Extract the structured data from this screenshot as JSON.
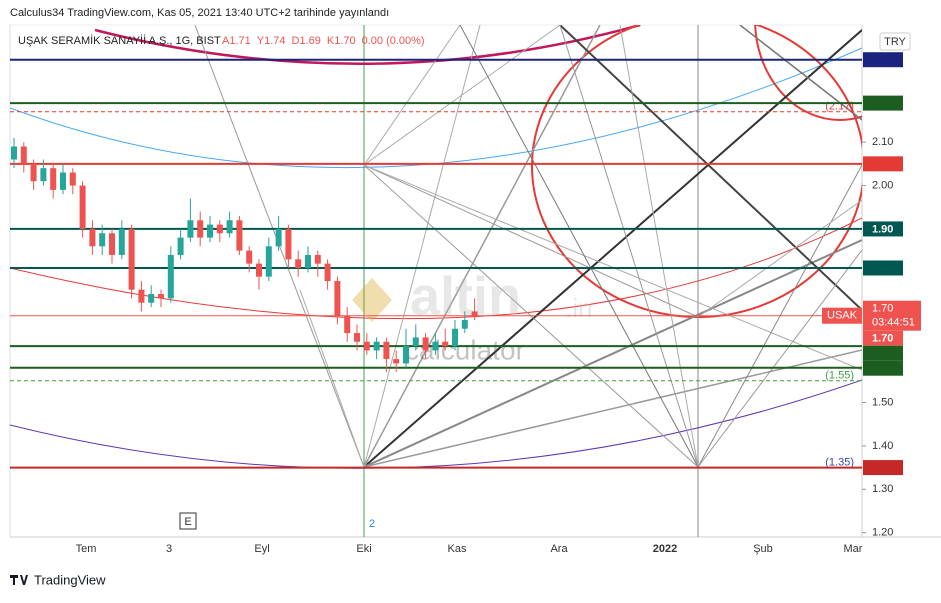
{
  "chart_data": {
    "type": "candlestick",
    "published": "Calculus34 TradingView.com, Kas 05, 2021 13:40 UTC+2 tarihinde yayınlandı",
    "symbol": "UŞAK SERAMİK SANAYİİ A.Ş., 1G, BIST",
    "ohlc_legend": [
      "A1.71",
      "Y1.74",
      "D1.69",
      "K1.70",
      "0.00 (0.00%)"
    ],
    "currency": "TRY",
    "footer": "TradingView",
    "watermark": [
      "altin",
      ".in",
      "calculator"
    ],
    "event_marker": "E",
    "bar_marker": "2",
    "up_color": "#26a69a",
    "down_color": "#ef5350",
    "open": [
      2.06,
      2.09,
      2.05,
      2.01,
      2.04,
      1.99,
      2.03,
      2.0,
      1.9,
      1.86,
      1.89,
      1.84,
      1.9,
      1.76,
      1.73,
      1.75,
      1.74,
      1.84,
      1.88,
      1.92,
      1.88,
      1.91,
      1.89,
      1.92,
      1.85,
      1.82,
      1.79,
      1.86,
      1.9,
      1.83,
      1.81,
      1.84,
      1.82,
      1.78,
      1.7,
      1.66,
      1.64,
      1.62,
      1.64,
      1.6,
      1.59,
      1.63,
      1.65,
      1.62,
      1.64,
      1.63,
      1.67,
      1.71
    ],
    "high": [
      2.11,
      2.1,
      2.06,
      2.06,
      2.05,
      2.05,
      2.04,
      2.01,
      1.92,
      1.91,
      1.9,
      1.92,
      1.91,
      1.78,
      1.77,
      1.76,
      1.86,
      1.9,
      1.97,
      1.94,
      1.93,
      1.92,
      1.94,
      1.93,
      1.86,
      1.83,
      1.88,
      1.93,
      1.91,
      1.85,
      1.86,
      1.85,
      1.83,
      1.79,
      1.72,
      1.68,
      1.66,
      1.65,
      1.65,
      1.62,
      1.67,
      1.68,
      1.66,
      1.66,
      1.67,
      1.69,
      1.71,
      1.74
    ],
    "low": [
      2.04,
      2.03,
      1.99,
      2.0,
      1.97,
      1.98,
      1.98,
      1.88,
      1.84,
      1.84,
      1.82,
      1.83,
      1.74,
      1.71,
      1.72,
      1.72,
      1.73,
      1.83,
      1.87,
      1.86,
      1.87,
      1.87,
      1.88,
      1.84,
      1.8,
      1.76,
      1.78,
      1.85,
      1.81,
      1.79,
      1.8,
      1.79,
      1.76,
      1.68,
      1.64,
      1.62,
      1.61,
      1.6,
      1.57,
      1.57,
      1.58,
      1.62,
      1.6,
      1.61,
      1.62,
      1.62,
      1.66,
      1.69
    ],
    "close": [
      2.09,
      2.05,
      2.01,
      2.04,
      1.99,
      2.03,
      2.0,
      1.9,
      1.86,
      1.89,
      1.84,
      1.9,
      1.76,
      1.73,
      1.75,
      1.74,
      1.84,
      1.88,
      1.92,
      1.88,
      1.91,
      1.89,
      1.92,
      1.85,
      1.82,
      1.79,
      1.86,
      1.9,
      1.83,
      1.81,
      1.84,
      1.82,
      1.78,
      1.7,
      1.66,
      1.64,
      1.62,
      1.64,
      1.6,
      1.59,
      1.63,
      1.65,
      1.62,
      1.64,
      1.63,
      1.67,
      1.69,
      1.7
    ],
    "ylim": [
      1.19,
      2.37
    ],
    "yticks": [
      {
        "value": 1.2,
        "label": "1.20"
      },
      {
        "value": 1.3,
        "label": "1.30"
      },
      {
        "value": 1.4,
        "label": "1.40"
      },
      {
        "value": 1.5,
        "label": "1.50"
      },
      {
        "value": 2,
        "label": "2.00"
      },
      {
        "value": 2.1,
        "label": "2.10"
      }
    ],
    "x_labels": [
      "Tem",
      "3",
      "Eyl",
      "Eki",
      "Kas",
      "Ara",
      "2022",
      "Şub",
      "Mar"
    ],
    "last_price": {
      "name": "USAK",
      "value": 1.7,
      "label": "1.70",
      "countdown": "03:44:51",
      "color": "#ef5350"
    },
    "levels": [
      {
        "value": 2.29,
        "color": "#1a237e"
      },
      {
        "value": 2.19,
        "color": "#1b5e20"
      },
      {
        "value": 2.05,
        "color": "#e53935"
      },
      {
        "value": 1.9,
        "label": "1.90",
        "color": "#00574f"
      },
      {
        "value": 1.81,
        "color": "#00574f"
      },
      {
        "value": 1.7,
        "label": "1.70",
        "color": "#ef5350"
      },
      {
        "value": 1.63,
        "color": "#1b5e20"
      },
      {
        "value": 1.58,
        "color": "#1b5e20"
      },
      {
        "value": 1.35,
        "color": "#c62828"
      }
    ],
    "dashed_levels": [
      {
        "value": 2.17,
        "label": "(2.17)",
        "color": "#e53935"
      },
      {
        "value": 1.55,
        "label": "(1.55)",
        "color": "#43a047"
      },
      {
        "value": 1.35,
        "label": "(1.35)",
        "color": "#3949ab"
      }
    ]
  }
}
